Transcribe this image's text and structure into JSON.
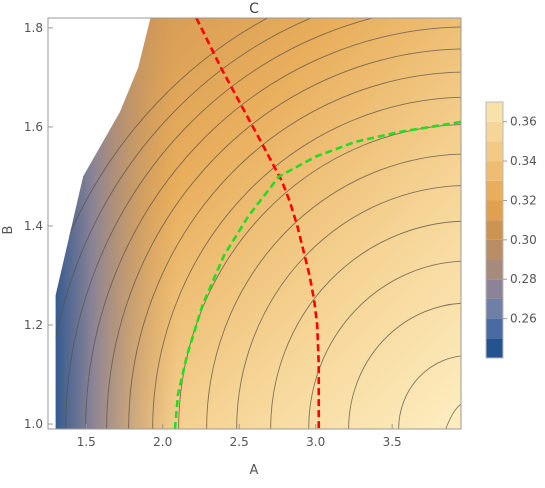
{
  "chart_data": {
    "type": "contour",
    "title": "C",
    "xlabel": "A",
    "ylabel": "B",
    "xlim": [
      1.25,
      3.95
    ],
    "ylim": [
      0.99,
      1.82
    ],
    "xticks": [
      "1.5",
      "2.0",
      "2.5",
      "3.0",
      "3.5"
    ],
    "yticks": [
      "1.0",
      "1.2",
      "1.4",
      "1.6",
      "1.8"
    ],
    "xtick_values": [
      1.5,
      2.0,
      2.5,
      3.0,
      3.5
    ],
    "ytick_values": [
      1.0,
      1.2,
      1.4,
      1.6,
      1.8
    ],
    "colorbar": {
      "labels": [
        "0.26",
        "0.28",
        "0.30",
        "0.32",
        "0.34",
        "0.36"
      ],
      "label_values": [
        0.26,
        0.28,
        0.3,
        0.32,
        0.34,
        0.36
      ],
      "range": [
        0.24,
        0.37
      ],
      "levels": [
        0.24,
        0.25,
        0.26,
        0.27,
        0.28,
        0.29,
        0.3,
        0.31,
        0.32,
        0.33,
        0.34,
        0.35,
        0.36,
        0.37
      ],
      "colors": [
        "#25538f",
        "#4a6aa3",
        "#6f7fa6",
        "#8c8496",
        "#a68a7b",
        "#b98d65",
        "#cf9351",
        "#e0a050",
        "#e8ae5c",
        "#eebd72",
        "#f2ca86",
        "#f6d698",
        "#f9e2aa",
        "#fcecbd"
      ]
    },
    "valid_region_boundary": [
      [
        1.3,
        0.99
      ],
      [
        1.3,
        1.26
      ],
      [
        1.48,
        1.5
      ],
      [
        1.72,
        1.63
      ],
      [
        1.84,
        1.72
      ],
      [
        1.92,
        1.82
      ]
    ],
    "dashed_curves": [
      {
        "color": "#ff0000",
        "points": [
          [
            2.22,
            1.82
          ],
          [
            2.38,
            1.72
          ],
          [
            2.52,
            1.64
          ],
          [
            2.66,
            1.56
          ],
          [
            2.78,
            1.49
          ],
          [
            2.83,
            1.45
          ],
          [
            2.88,
            1.4
          ],
          [
            2.92,
            1.35
          ],
          [
            2.96,
            1.3
          ],
          [
            2.99,
            1.25
          ],
          [
            3.01,
            1.2
          ],
          [
            3.02,
            1.12
          ],
          [
            3.02,
            0.99
          ]
        ]
      },
      {
        "color": "#22dd22",
        "points": [
          [
            2.08,
            0.99
          ],
          [
            2.1,
            1.06
          ],
          [
            2.16,
            1.14
          ],
          [
            2.26,
            1.24
          ],
          [
            2.4,
            1.34
          ],
          [
            2.56,
            1.42
          ],
          [
            2.76,
            1.5
          ],
          [
            3.0,
            1.54
          ],
          [
            3.26,
            1.57
          ],
          [
            3.55,
            1.59
          ],
          [
            3.95,
            1.61
          ]
        ]
      }
    ]
  }
}
